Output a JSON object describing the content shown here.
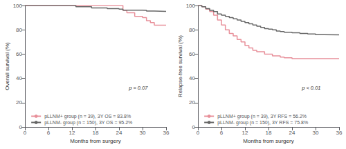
{
  "chart_data": [
    {
      "type": "step",
      "xlabel": "Months from surgery",
      "ylabel": "Overall survival (%)",
      "xlim": [
        0,
        36
      ],
      "xticks": [
        0,
        6,
        12,
        18,
        24,
        30,
        36
      ],
      "ylim": [
        0,
        100
      ],
      "yticks": [
        0,
        20,
        40,
        60,
        80,
        100
      ],
      "grid": false,
      "legend": "lower left",
      "annotations": [
        "p = 0.07"
      ],
      "series": [
        {
          "name": "pLLNM+ group (n = 39), 3Y OS = 83.8%",
          "color": "#e8909a",
          "x": [
            0,
            24,
            25,
            26,
            28,
            30,
            31,
            32,
            33,
            36
          ],
          "values": [
            100,
            100,
            96,
            94,
            91,
            90,
            87.5,
            86,
            83.8,
            83.8
          ]
        },
        {
          "name": "pLLNM- group (n = 150), 3Y OS = 95.2%",
          "color": "#666666",
          "x": [
            0,
            13,
            16,
            17,
            20,
            21,
            24,
            25,
            30,
            31,
            32,
            33,
            36
          ],
          "values": [
            100,
            99,
            99,
            98,
            98,
            97.5,
            97,
            96.2,
            96,
            95.5,
            95.5,
            95.2,
            95.2
          ]
        }
      ]
    },
    {
      "type": "step",
      "xlabel": "Months from surgery",
      "ylabel": "Relapse-free survival (%)",
      "xlim": [
        0,
        36
      ],
      "xticks": [
        0,
        6,
        12,
        18,
        24,
        30,
        36
      ],
      "ylim": [
        0,
        100
      ],
      "yticks": [
        0,
        20,
        40,
        60,
        80,
        100
      ],
      "grid": false,
      "legend": "lower left",
      "annotations": [
        "p < 0.01"
      ],
      "series": [
        {
          "name": "pLLNM+ group (n = 39), 3Y RFS = 56.2%",
          "color": "#e8909a",
          "x": [
            0,
            1,
            2,
            3,
            4,
            5,
            6,
            7,
            8,
            9,
            10,
            11,
            12,
            13,
            14,
            15,
            17,
            19,
            21,
            22,
            24,
            36
          ],
          "values": [
            100,
            99,
            97,
            95,
            92,
            88,
            84,
            80,
            77,
            75,
            72,
            70,
            67,
            65,
            63,
            62,
            60,
            58.5,
            57.5,
            57,
            56.2,
            56.2
          ]
        },
        {
          "name": "pLLNM- group (n = 150), 3Y RFS = 75.8%",
          "color": "#666666",
          "x": [
            0,
            1,
            2,
            3,
            4,
            5,
            6,
            7,
            8,
            9,
            10,
            11,
            12,
            13,
            14,
            15,
            16,
            17,
            18,
            19,
            20,
            21,
            22,
            24,
            26,
            28,
            30,
            32,
            36
          ],
          "values": [
            100,
            99,
            97.5,
            96,
            95,
            93,
            92,
            91,
            90,
            89,
            88,
            87,
            86,
            85,
            84,
            83,
            82,
            81,
            80.5,
            80,
            79,
            78.5,
            78,
            77.5,
            77,
            76.5,
            76,
            75.8,
            75.8
          ]
        }
      ]
    }
  ]
}
